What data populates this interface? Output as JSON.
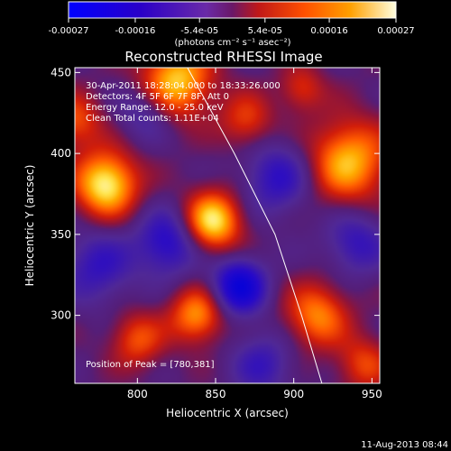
{
  "colorbar": {
    "tick_labels": [
      "-0.00027",
      "-0.00016",
      "-5.4e-05",
      "5.4e-05",
      "0.00016",
      "0.00027"
    ],
    "tick_values": [
      -0.00027,
      -0.00016,
      -5.4e-05,
      5.4e-05,
      0.00016,
      0.00027
    ],
    "range": [
      -0.00027,
      0.00027
    ],
    "unit_label": "(photons cm⁻² s⁻¹ asec⁻²)"
  },
  "title": "Reconstructed RHESSI Image",
  "annotations": [
    "30-Apr-2011 18:28:04.000 to 18:33:26.000",
    "Detectors: 4F 5F 6F 7F 8F, Att 0",
    "Energy Range: 12.0 - 25.0 keV",
    "Clean     Total counts: 1.11E+04"
  ],
  "peak_label": "Position of Peak = [780,381]",
  "x_axis": {
    "label": "Heliocentric X (arcsec)",
    "range": [
      760,
      955
    ],
    "ticks": [
      800,
      850,
      900,
      950
    ]
  },
  "y_axis": {
    "label": "Heliocentric Y (arcsec)",
    "range": [
      258,
      453
    ],
    "ticks": [
      300,
      350,
      400,
      450
    ]
  },
  "limb_points": [
    [
      832,
      453
    ],
    [
      862,
      400
    ],
    [
      888,
      350
    ],
    [
      905,
      300
    ],
    [
      918,
      258
    ]
  ],
  "blobs": [
    {
      "x": 780,
      "y": 381,
      "amp": 1.0,
      "sigma": 14
    },
    {
      "x": 848,
      "y": 358,
      "amp": 0.95,
      "sigma": 13
    },
    {
      "x": 825,
      "y": 445,
      "amp": 0.85,
      "sigma": 16
    },
    {
      "x": 935,
      "y": 395,
      "amp": 0.8,
      "sigma": 18
    },
    {
      "x": 838,
      "y": 300,
      "amp": 0.7,
      "sigma": 12
    },
    {
      "x": 915,
      "y": 300,
      "amp": 0.65,
      "sigma": 14
    },
    {
      "x": 800,
      "y": 285,
      "amp": 0.5,
      "sigma": 12
    },
    {
      "x": 870,
      "y": 420,
      "amp": 0.45,
      "sigma": 12
    },
    {
      "x": 905,
      "y": 440,
      "amp": 0.4,
      "sigma": 10
    },
    {
      "x": 760,
      "y": 420,
      "amp": 0.5,
      "sigma": 12
    },
    {
      "x": 945,
      "y": 270,
      "amp": 0.45,
      "sigma": 12
    },
    {
      "x": 865,
      "y": 318,
      "amp": -0.85,
      "sigma": 12
    },
    {
      "x": 820,
      "y": 345,
      "amp": -0.6,
      "sigma": 14
    },
    {
      "x": 890,
      "y": 385,
      "amp": -0.5,
      "sigma": 16
    },
    {
      "x": 775,
      "y": 330,
      "amp": -0.45,
      "sigma": 16
    },
    {
      "x": 940,
      "y": 345,
      "amp": -0.45,
      "sigma": 14
    },
    {
      "x": 880,
      "y": 270,
      "amp": -0.4,
      "sigma": 14
    },
    {
      "x": 805,
      "y": 425,
      "amp": -0.35,
      "sigma": 12
    }
  ],
  "footer_date": "11-Aug-2013 08:44"
}
